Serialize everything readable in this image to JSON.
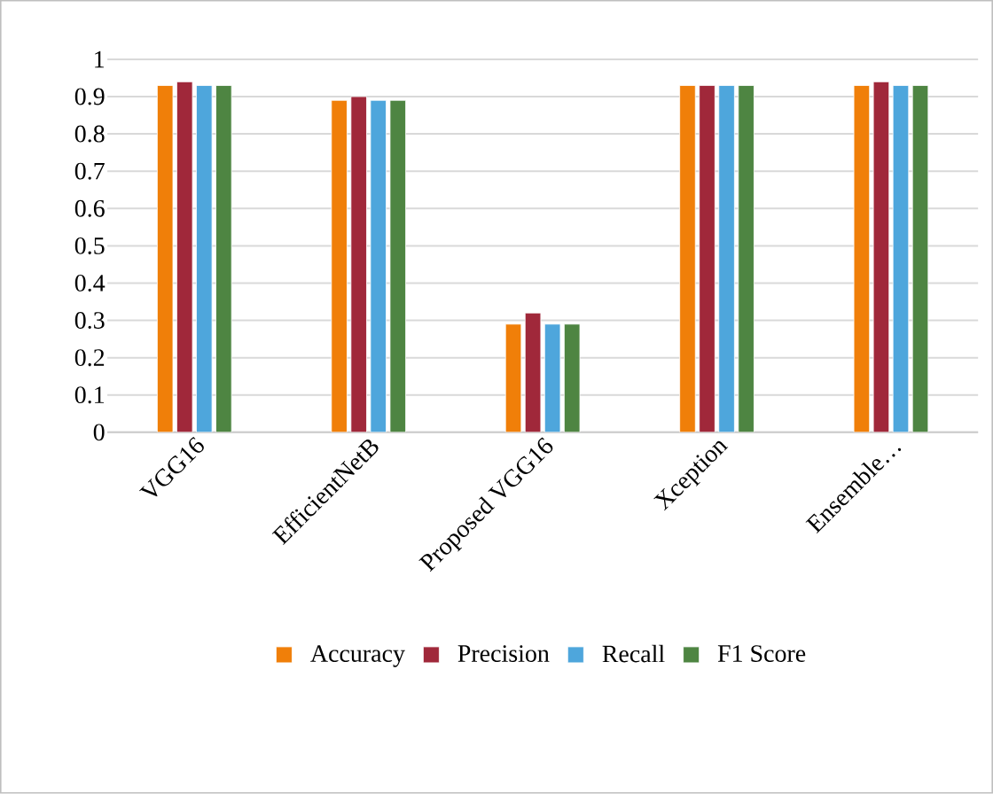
{
  "chart_data": {
    "type": "bar",
    "categories": [
      "VGG16",
      "EfficientNetB",
      "Proposed VGG16",
      "Xception",
      "Ensemble…"
    ],
    "series": [
      {
        "name": "Accuracy",
        "color": "#f07f09",
        "values": [
          0.93,
          0.89,
          0.29,
          0.93,
          0.93
        ]
      },
      {
        "name": "Precision",
        "color": "#a0283a",
        "values": [
          0.94,
          0.9,
          0.32,
          0.93,
          0.94
        ]
      },
      {
        "name": "Recall",
        "color": "#4ea6dc",
        "values": [
          0.93,
          0.89,
          0.29,
          0.93,
          0.93
        ]
      },
      {
        "name": "F1 Score",
        "color": "#4e8542",
        "values": [
          0.93,
          0.89,
          0.29,
          0.93,
          0.93
        ]
      }
    ],
    "ylim": [
      0,
      1
    ],
    "yticks": [
      0,
      0.1,
      0.2,
      0.3,
      0.4,
      0.5,
      0.6,
      0.7,
      0.8,
      0.9,
      1
    ],
    "grid": "y",
    "legend": "bottom"
  }
}
